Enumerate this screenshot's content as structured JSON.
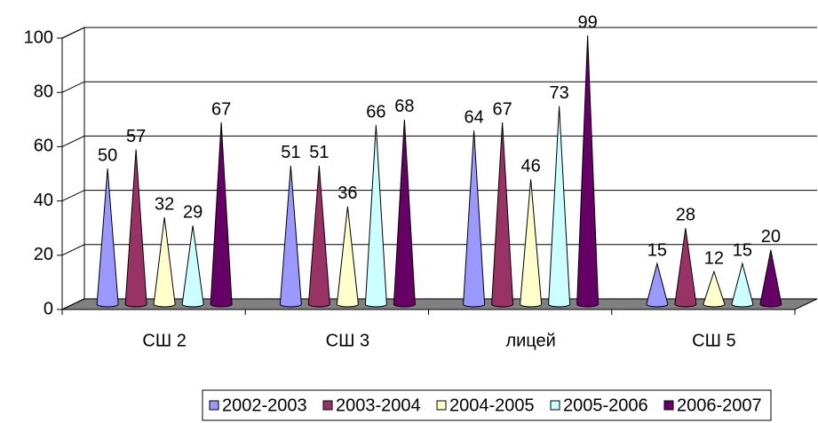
{
  "chart_data": {
    "type": "cone",
    "categories": [
      "СШ 2",
      "СШ 3",
      "лицей",
      "СШ 5"
    ],
    "series": [
      {
        "name": "2002-2003",
        "color": "#9999ff",
        "values": [
          50,
          51,
          64,
          15
        ]
      },
      {
        "name": "2003-2004",
        "color": "#993366",
        "values": [
          57,
          51,
          67,
          28
        ]
      },
      {
        "name": "2004-2005",
        "color": "#ffffcc",
        "values": [
          32,
          36,
          46,
          12
        ]
      },
      {
        "name": "2005-2006",
        "color": "#ccffff",
        "values": [
          29,
          66,
          73,
          15
        ]
      },
      {
        "name": "2006-2007",
        "color": "#660066",
        "values": [
          67,
          68,
          99,
          20
        ]
      }
    ],
    "ylim": [
      0,
      100
    ],
    "yticks": [
      0,
      20,
      40,
      60,
      80,
      100
    ],
    "grid": true,
    "legend": "bottom"
  }
}
